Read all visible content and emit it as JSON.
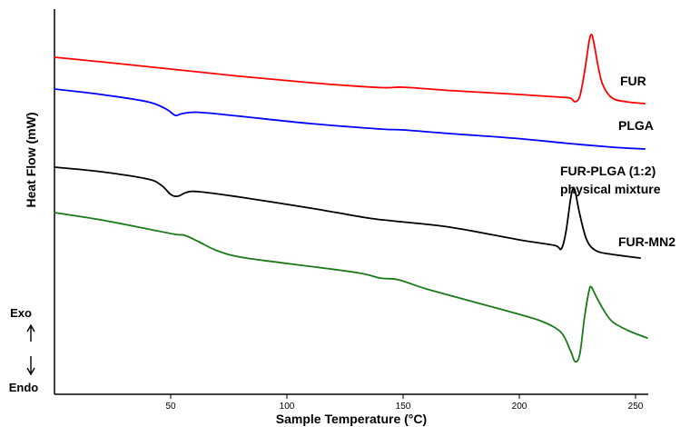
{
  "chart_data": {
    "type": "line",
    "title": "",
    "xlabel": "Sample Temperature (°C)",
    "ylabel": "Heat Flow (mW)",
    "xlim": [
      0,
      255
    ],
    "x_ticks": [
      50,
      100,
      150,
      200,
      250
    ],
    "y_ticks_labeled": false,
    "grid": false,
    "legend": "labels next to curves",
    "direction_labels": {
      "exo": "Exo",
      "endo": "Endo"
    },
    "series": [
      {
        "name": "FUR",
        "label_lines": [
          "FUR"
        ],
        "color": "#ff0000",
        "points": [
          [
            0,
            0.935
          ],
          [
            20,
            0.91
          ],
          [
            50,
            0.87
          ],
          [
            80,
            0.83
          ],
          [
            110,
            0.795
          ],
          [
            140,
            0.768
          ],
          [
            150,
            0.77
          ],
          [
            170,
            0.752
          ],
          [
            200,
            0.73
          ],
          [
            218,
            0.715
          ],
          [
            222,
            0.71
          ],
          [
            224,
            0.69
          ],
          [
            226,
            0.72
          ],
          [
            228,
            0.85
          ],
          [
            230,
            1.02
          ],
          [
            231,
            1.06
          ],
          [
            232,
            1.02
          ],
          [
            234,
            0.88
          ],
          [
            236,
            0.78
          ],
          [
            240,
            0.71
          ],
          [
            246,
            0.69
          ],
          [
            254,
            0.68
          ]
        ]
      },
      {
        "name": "PLGA",
        "label_lines": [
          "PLGA"
        ],
        "color": "#0000ff",
        "points": [
          [
            0,
            0.76
          ],
          [
            20,
            0.73
          ],
          [
            40,
            0.69
          ],
          [
            48,
            0.65
          ],
          [
            52,
            0.615
          ],
          [
            55,
            0.625
          ],
          [
            62,
            0.632
          ],
          [
            80,
            0.61
          ],
          [
            110,
            0.57
          ],
          [
            140,
            0.54
          ],
          [
            150,
            0.535
          ],
          [
            170,
            0.515
          ],
          [
            200,
            0.487
          ],
          [
            220,
            0.462
          ],
          [
            240,
            0.44
          ],
          [
            254,
            0.43
          ]
        ]
      },
      {
        "name": "FUR-PLGA (1:2) physical mixture",
        "label_lines": [
          "FUR-PLGA (1:2)",
          "physical mixture"
        ],
        "color": "#000000",
        "points": [
          [
            0,
            0.33
          ],
          [
            20,
            0.305
          ],
          [
            40,
            0.265
          ],
          [
            46,
            0.23
          ],
          [
            50,
            0.18
          ],
          [
            53,
            0.17
          ],
          [
            57,
            0.192
          ],
          [
            62,
            0.195
          ],
          [
            80,
            0.165
          ],
          [
            110,
            0.105
          ],
          [
            135,
            0.05
          ],
          [
            145,
            0.035
          ],
          [
            170,
            0.0
          ],
          [
            200,
            -0.07
          ],
          [
            215,
            -0.1
          ],
          [
            218,
            -0.12
          ],
          [
            220,
            -0.03
          ],
          [
            222,
            0.15
          ],
          [
            223,
            0.21
          ],
          [
            224,
            0.2
          ],
          [
            226,
            0.07
          ],
          [
            229,
            -0.07
          ],
          [
            233,
            -0.13
          ],
          [
            240,
            -0.15
          ],
          [
            252,
            -0.17
          ]
        ]
      },
      {
        "name": "FUR-MN2",
        "label_lines": [
          "FUR-MN2"
        ],
        "color": "#1a7a1a",
        "points": [
          [
            0,
            0.08
          ],
          [
            20,
            0.04
          ],
          [
            40,
            -0.01
          ],
          [
            52,
            -0.04
          ],
          [
            56,
            -0.045
          ],
          [
            62,
            -0.08
          ],
          [
            70,
            -0.13
          ],
          [
            80,
            -0.165
          ],
          [
            100,
            -0.2
          ],
          [
            130,
            -0.25
          ],
          [
            140,
            -0.28
          ],
          [
            148,
            -0.29
          ],
          [
            160,
            -0.34
          ],
          [
            180,
            -0.41
          ],
          [
            200,
            -0.48
          ],
          [
            210,
            -0.52
          ],
          [
            218,
            -0.58
          ],
          [
            222,
            -0.68
          ],
          [
            224,
            -0.74
          ],
          [
            226,
            -0.7
          ],
          [
            228,
            -0.5
          ],
          [
            230,
            -0.35
          ],
          [
            231,
            -0.33
          ],
          [
            233,
            -0.38
          ],
          [
            236,
            -0.45
          ],
          [
            240,
            -0.52
          ],
          [
            247,
            -0.57
          ],
          [
            255,
            -0.61
          ]
        ]
      }
    ]
  }
}
